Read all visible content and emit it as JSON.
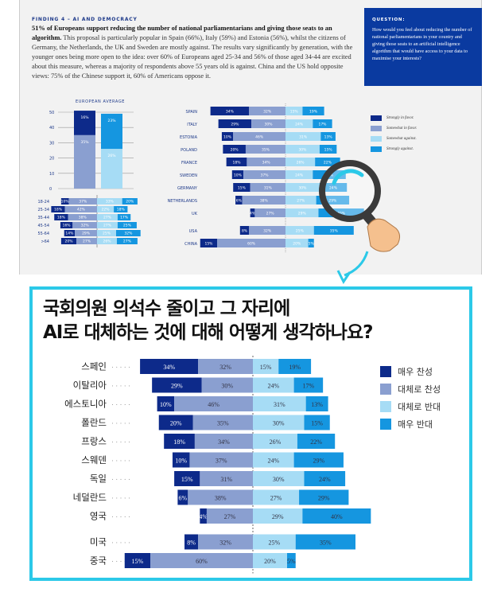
{
  "document": {
    "finding_label": "FINDING 4 – AI AND DEMOCRACY",
    "intro_bold": "51% of Europeans support reducing the number of national parliamentarians and giving those seats to an algorithm.",
    "intro_text": " This proposal is particularly popular in Spain (66%), Italy (59%) and Estonia (56%), whilst the citizens of Germany, the Netherlands, the UK and Sweden are mostly against. The results vary significantly by generation, with the younger ones being more open to the idea: over 60% of Europeans aged 25-34 and 56% of those aged 34-44 are excited about this measure, whereas a majority of respondents above 55 years old is against. China and the US hold opposite views: 75% of the Chinese support it, 60% of Americans oppose it.",
    "question_label": "QUESTION:",
    "question_text": "How would you feel about reducing the number of national parliamentarians in your country and giving those seats to an artificial intelligence algorithm that would have access to your data to maximise your interests?",
    "legend": [
      "Strongly in favor.",
      "Somewhat in favor.",
      "Somewhat against.",
      "Strongly against."
    ]
  },
  "colors": {
    "strong_favor": "#0d2a8a",
    "somewhat_favor": "#8a9fd0",
    "somewhat_against": "#a6dcf5",
    "strong_against": "#1596e0",
    "accent": "#2cc9e8"
  },
  "korean": {
    "title_line1": "국회의원 의석수 줄이고 그 자리에",
    "title_line2": "AI로 대체하는 것에 대해 어떻게 생각하나요?",
    "legend": [
      "매우 찬성",
      "대체로 찬성",
      "대체로 반대",
      "매우 반대"
    ]
  },
  "chart_data": [
    {
      "type": "bar",
      "title": "EUROPEAN AVERAGE",
      "ylim": [
        0,
        50
      ],
      "yticks": [
        0,
        10,
        20,
        30,
        40,
        50
      ],
      "bars": [
        {
          "segments": [
            35,
            16
          ]
        },
        {
          "segments": [
            26,
            23
          ]
        }
      ]
    },
    {
      "type": "bar",
      "orientation": "diverging",
      "categories": [
        "18-24",
        "25-34",
        "35-44",
        "45-54",
        "55-64",
        ">64"
      ],
      "series": [
        {
          "values": [
            10,
            18,
            18,
            16,
            14,
            20
          ]
        },
        {
          "values": [
            37,
            42,
            38,
            32,
            29,
            27
          ]
        },
        {
          "values": [
            33,
            22,
            27,
            27,
            25,
            26
          ]
        },
        {
          "values": [
            20,
            18,
            17,
            25,
            32,
            27
          ]
        }
      ]
    },
    {
      "type": "bar",
      "orientation": "diverging",
      "categories": [
        "SPAIN",
        "ITALY",
        "ESTONIA",
        "POLAND",
        "FRANCE",
        "SWEDEN",
        "GERMANY",
        "NETHERLANDS",
        "UK",
        "USA",
        "CHINA"
      ],
      "series": [
        {
          "name": "Strongly in favor.",
          "values": [
            34,
            29,
            10,
            20,
            18,
            10,
            15,
            6,
            4,
            8,
            15
          ]
        },
        {
          "name": "Somewhat in favor.",
          "values": [
            32,
            30,
            46,
            35,
            34,
            37,
            31,
            38,
            27,
            32,
            60
          ]
        },
        {
          "name": "Somewhat against.",
          "values": [
            15,
            24,
            31,
            30,
            26,
            24,
            30,
            27,
            29,
            25,
            20
          ]
        },
        {
          "name": "Strongly against.",
          "values": [
            19,
            17,
            13,
            15,
            22,
            29,
            24,
            29,
            40,
            35,
            5
          ]
        }
      ]
    },
    {
      "type": "bar",
      "orientation": "diverging",
      "categories": [
        "스페인",
        "이탈리아",
        "에스토니아",
        "폴란드",
        "프랑스",
        "스웨덴",
        "독일",
        "네덜란드",
        "영국",
        "미국",
        "중국"
      ],
      "series": [
        {
          "name": "매우 찬성",
          "values": [
            34,
            29,
            10,
            20,
            18,
            10,
            15,
            6,
            4,
            8,
            15
          ]
        },
        {
          "name": "대체로 찬성",
          "values": [
            32,
            30,
            46,
            35,
            34,
            37,
            31,
            38,
            27,
            32,
            60
          ]
        },
        {
          "name": "대체로 반대",
          "values": [
            15,
            24,
            31,
            30,
            26,
            24,
            30,
            27,
            29,
            25,
            20
          ]
        },
        {
          "name": "매우 반대",
          "values": [
            19,
            17,
            13,
            15,
            22,
            29,
            24,
            29,
            40,
            35,
            5
          ]
        }
      ]
    }
  ]
}
